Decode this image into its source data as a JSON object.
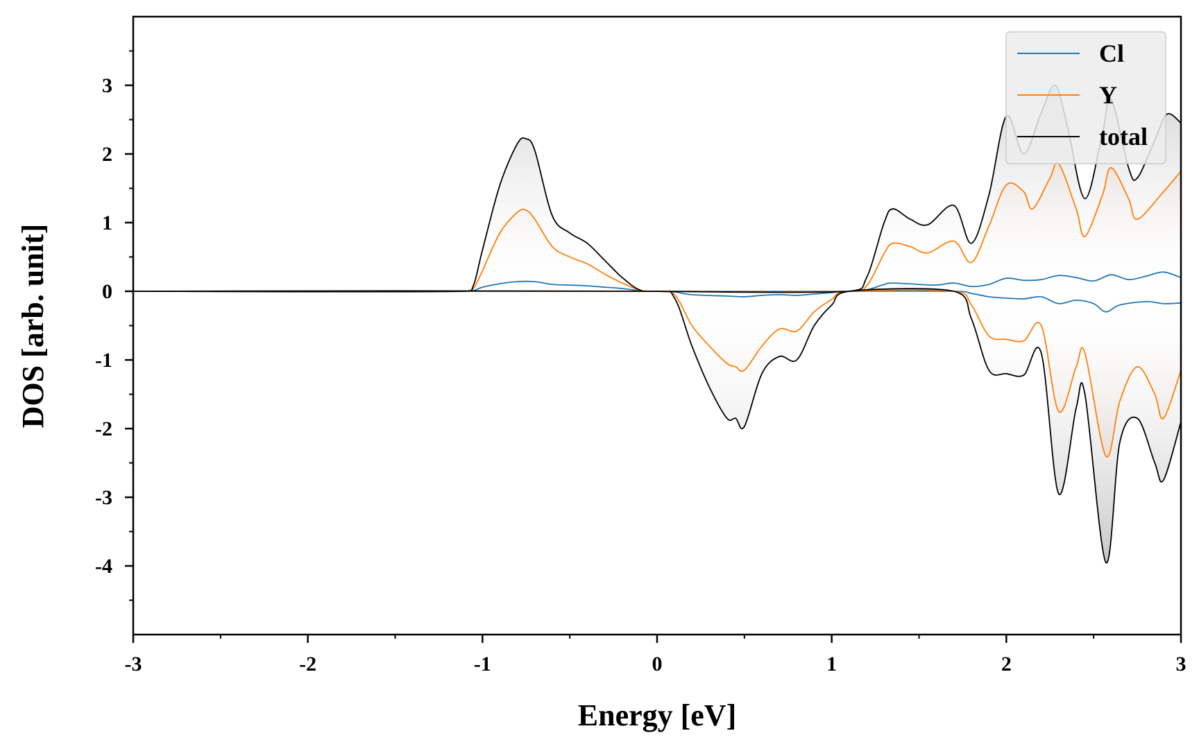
{
  "chart_data": {
    "type": "line",
    "title": "",
    "xlabel": "Energy [eV]",
    "ylabel": "DOS [arb. unit]",
    "xlim": [
      -3,
      3
    ],
    "ylim": [
      -5,
      4
    ],
    "xticks": [
      -3,
      -2,
      -1,
      0,
      1,
      2,
      3
    ],
    "xtick_labels": [
      "-3",
      "-2",
      "-1",
      "0",
      "1",
      "2",
      "3"
    ],
    "yticks": [
      -4,
      -3,
      -2,
      -1,
      0,
      1,
      2,
      3
    ],
    "ytick_labels": [
      "-4",
      "-3",
      "-2",
      "-1",
      "0",
      "1",
      "2",
      "3"
    ],
    "legend_position": "top-right",
    "grid": false,
    "series": [
      {
        "name": "Cl",
        "color": "#1f77b4",
        "spin_up": [
          [
            -3,
            0
          ],
          [
            -1.1,
            0
          ],
          [
            -1.05,
            0.01
          ],
          [
            -1.0,
            0.06
          ],
          [
            -0.9,
            0.11
          ],
          [
            -0.8,
            0.14
          ],
          [
            -0.7,
            0.14
          ],
          [
            -0.6,
            0.1
          ],
          [
            -0.5,
            0.09
          ],
          [
            -0.4,
            0.08
          ],
          [
            -0.3,
            0.06
          ],
          [
            -0.2,
            0.04
          ],
          [
            -0.1,
            0.01
          ],
          [
            0,
            0
          ],
          [
            1.1,
            0
          ],
          [
            1.2,
            0.02
          ],
          [
            1.3,
            0.1
          ],
          [
            1.35,
            0.12
          ],
          [
            1.5,
            0.1
          ],
          [
            1.6,
            0.09
          ],
          [
            1.7,
            0.12
          ],
          [
            1.8,
            0.07
          ],
          [
            1.9,
            0.1
          ],
          [
            2.0,
            0.19
          ],
          [
            2.1,
            0.16
          ],
          [
            2.2,
            0.17
          ],
          [
            2.3,
            0.23
          ],
          [
            2.4,
            0.2
          ],
          [
            2.5,
            0.15
          ],
          [
            2.6,
            0.24
          ],
          [
            2.7,
            0.17
          ],
          [
            2.8,
            0.22
          ],
          [
            2.9,
            0.28
          ],
          [
            3.0,
            0.2
          ]
        ],
        "spin_down": [
          [
            -3,
            0
          ],
          [
            0,
            0
          ],
          [
            0.1,
            -0.01
          ],
          [
            0.2,
            -0.05
          ],
          [
            0.4,
            -0.07
          ],
          [
            0.5,
            -0.08
          ],
          [
            0.6,
            -0.06
          ],
          [
            0.7,
            -0.05
          ],
          [
            0.8,
            -0.06
          ],
          [
            0.9,
            -0.04
          ],
          [
            1.0,
            -0.02
          ],
          [
            1.1,
            0
          ],
          [
            1.7,
            0
          ],
          [
            1.8,
            -0.03
          ],
          [
            1.9,
            -0.08
          ],
          [
            2.0,
            -0.1
          ],
          [
            2.1,
            -0.11
          ],
          [
            2.2,
            -0.08
          ],
          [
            2.3,
            -0.18
          ],
          [
            2.4,
            -0.13
          ],
          [
            2.5,
            -0.18
          ],
          [
            2.57,
            -0.3
          ],
          [
            2.65,
            -0.2
          ],
          [
            2.8,
            -0.15
          ],
          [
            2.9,
            -0.18
          ],
          [
            3.0,
            -0.17
          ]
        ]
      },
      {
        "name": "Y",
        "color": "#ff7f0e",
        "spin_up": [
          [
            -3,
            0
          ],
          [
            -1.1,
            0
          ],
          [
            -1.05,
            0.05
          ],
          [
            -1.0,
            0.3
          ],
          [
            -0.9,
            0.85
          ],
          [
            -0.8,
            1.15
          ],
          [
            -0.75,
            1.18
          ],
          [
            -0.7,
            1.05
          ],
          [
            -0.6,
            0.65
          ],
          [
            -0.5,
            0.5
          ],
          [
            -0.4,
            0.4
          ],
          [
            -0.3,
            0.25
          ],
          [
            -0.2,
            0.12
          ],
          [
            -0.1,
            0.02
          ],
          [
            0,
            0
          ],
          [
            1.1,
            0
          ],
          [
            1.2,
            0.08
          ],
          [
            1.3,
            0.55
          ],
          [
            1.35,
            0.7
          ],
          [
            1.45,
            0.65
          ],
          [
            1.55,
            0.56
          ],
          [
            1.7,
            0.73
          ],
          [
            1.8,
            0.42
          ],
          [
            1.9,
            0.95
          ],
          [
            2.0,
            1.55
          ],
          [
            2.1,
            1.45
          ],
          [
            2.15,
            1.2
          ],
          [
            2.25,
            1.65
          ],
          [
            2.3,
            1.86
          ],
          [
            2.4,
            1.2
          ],
          [
            2.45,
            0.8
          ],
          [
            2.55,
            1.4
          ],
          [
            2.6,
            1.8
          ],
          [
            2.7,
            1.35
          ],
          [
            2.75,
            1.05
          ],
          [
            2.9,
            1.45
          ],
          [
            3.0,
            1.75
          ]
        ],
        "spin_down": [
          [
            -3,
            0
          ],
          [
            0,
            0
          ],
          [
            0.1,
            -0.05
          ],
          [
            0.2,
            -0.5
          ],
          [
            0.3,
            -0.8
          ],
          [
            0.4,
            -1.05
          ],
          [
            0.45,
            -1.1
          ],
          [
            0.5,
            -1.15
          ],
          [
            0.6,
            -0.8
          ],
          [
            0.7,
            -0.55
          ],
          [
            0.8,
            -0.58
          ],
          [
            0.9,
            -0.3
          ],
          [
            1.0,
            -0.12
          ],
          [
            1.1,
            0
          ],
          [
            1.7,
            0
          ],
          [
            1.8,
            -0.2
          ],
          [
            1.9,
            -0.65
          ],
          [
            2.0,
            -0.7
          ],
          [
            2.1,
            -0.72
          ],
          [
            2.2,
            -0.5
          ],
          [
            2.3,
            -1.75
          ],
          [
            2.4,
            -1.1
          ],
          [
            2.45,
            -0.9
          ],
          [
            2.57,
            -2.4
          ],
          [
            2.65,
            -1.6
          ],
          [
            2.75,
            -1.1
          ],
          [
            2.85,
            -1.5
          ],
          [
            2.9,
            -1.85
          ],
          [
            3.0,
            -1.15
          ]
        ]
      },
      {
        "name": "total",
        "color": "#000000",
        "spin_up": [
          [
            -3,
            0
          ],
          [
            -1.1,
            0
          ],
          [
            -1.05,
            0.1
          ],
          [
            -1.0,
            0.6
          ],
          [
            -0.9,
            1.55
          ],
          [
            -0.8,
            2.15
          ],
          [
            -0.75,
            2.22
          ],
          [
            -0.7,
            2.05
          ],
          [
            -0.6,
            1.1
          ],
          [
            -0.5,
            0.85
          ],
          [
            -0.4,
            0.7
          ],
          [
            -0.3,
            0.45
          ],
          [
            -0.2,
            0.2
          ],
          [
            -0.1,
            0.02
          ],
          [
            0,
            0
          ],
          [
            1.1,
            0
          ],
          [
            1.2,
            0.2
          ],
          [
            1.3,
            1.0
          ],
          [
            1.35,
            1.2
          ],
          [
            1.45,
            1.05
          ],
          [
            1.55,
            0.97
          ],
          [
            1.7,
            1.25
          ],
          [
            1.8,
            0.7
          ],
          [
            1.9,
            1.4
          ],
          [
            2.0,
            2.55
          ],
          [
            2.1,
            2.0
          ],
          [
            2.2,
            2.6
          ],
          [
            2.28,
            3.0
          ],
          [
            2.35,
            2.4
          ],
          [
            2.45,
            1.35
          ],
          [
            2.55,
            2.3
          ],
          [
            2.6,
            2.8
          ],
          [
            2.7,
            1.8
          ],
          [
            2.75,
            1.65
          ],
          [
            2.85,
            2.2
          ],
          [
            2.92,
            2.58
          ],
          [
            3.0,
            2.45
          ]
        ],
        "spin_down": [
          [
            -3,
            0
          ],
          [
            0,
            0
          ],
          [
            0.1,
            -0.1
          ],
          [
            0.2,
            -0.8
          ],
          [
            0.3,
            -1.4
          ],
          [
            0.4,
            -1.85
          ],
          [
            0.45,
            -1.85
          ],
          [
            0.5,
            -1.97
          ],
          [
            0.6,
            -1.2
          ],
          [
            0.7,
            -0.95
          ],
          [
            0.8,
            -1.0
          ],
          [
            0.9,
            -0.5
          ],
          [
            1.0,
            -0.2
          ],
          [
            1.1,
            0
          ],
          [
            1.7,
            0
          ],
          [
            1.8,
            -0.4
          ],
          [
            1.9,
            -1.15
          ],
          [
            2.0,
            -1.2
          ],
          [
            2.1,
            -1.22
          ],
          [
            2.2,
            -0.9
          ],
          [
            2.3,
            -2.95
          ],
          [
            2.4,
            -1.7
          ],
          [
            2.45,
            -1.5
          ],
          [
            2.57,
            -3.95
          ],
          [
            2.65,
            -2.2
          ],
          [
            2.75,
            -1.85
          ],
          [
            2.85,
            -2.5
          ],
          [
            2.9,
            -2.75
          ],
          [
            3.0,
            -1.9
          ]
        ]
      }
    ]
  }
}
